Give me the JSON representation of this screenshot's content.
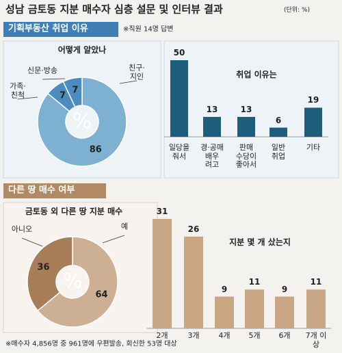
{
  "header": {
    "title": "성남 금토동 지분 매수자 심층 설문 및 인터뷰 결과",
    "unit": "(단위: %)"
  },
  "sections": [
    {
      "title": "기획부동산 취업 이유",
      "note": "※직원 14명 답변"
    },
    {
      "title": "다른 땅 매수 여부"
    }
  ],
  "chart_data": [
    {
      "type": "pie",
      "title": "어떻게 알았나",
      "center_label": "%",
      "categories": [
        "친구·\n지인",
        "가족·\n친척",
        "신문·방송"
      ],
      "values": [
        86,
        7,
        7
      ],
      "colors": [
        "#7eb0d2",
        "#4b8bbd",
        "#4b8bbd"
      ]
    },
    {
      "type": "bar",
      "title": "취업 이유는",
      "categories": [
        "일당을\n줘서",
        "경·공매\n배우\n려고",
        "판매\n수당이\n좋아서",
        "일반\n취업",
        "기타"
      ],
      "values": [
        50,
        13,
        13,
        6,
        19
      ],
      "color": "#1f5d7c"
    },
    {
      "type": "pie",
      "title": "금토동 외 다른 땅 지분 매수",
      "center_label": "%",
      "categories": [
        "예",
        "아니오"
      ],
      "values": [
        64,
        36
      ],
      "colors": [
        "#cdb093",
        "#a87e58"
      ]
    },
    {
      "type": "bar",
      "title": "지분 몇 개 샀는지",
      "categories": [
        "2개",
        "3개",
        "4개",
        "5개",
        "6개",
        "7개 이상"
      ],
      "values": [
        31,
        26,
        9,
        11,
        9,
        11
      ],
      "color": "#caa784"
    }
  ],
  "footnote": "※매수자 4,856명 중 961명에 우편발송, 회신한 53명 대상"
}
